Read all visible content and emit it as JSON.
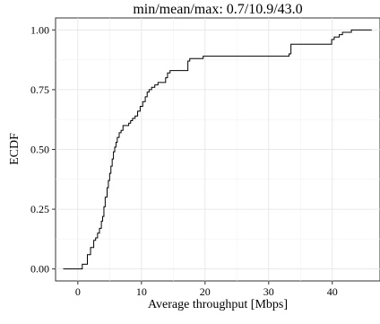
{
  "chart_data": {
    "type": "line",
    "title": "min/mean/max: 0.7/10.9/43.0",
    "xlabel": "Average throughput [Mbps]",
    "ylabel": "ECDF",
    "xlim": [
      -3.5,
      47.5
    ],
    "ylim": [
      -0.05,
      1.05
    ],
    "grid": true,
    "x_ticks": [
      0,
      10,
      20,
      30,
      40
    ],
    "y_ticks": [
      0.0,
      0.25,
      0.5,
      0.75,
      1.0
    ],
    "x_tick_labels": [
      "0",
      "10",
      "20",
      "30",
      "40"
    ],
    "y_tick_labels": [
      "0.00",
      "0.25",
      "0.50",
      "0.75",
      "1.00"
    ],
    "series": [
      {
        "step": "post",
        "x": [
          -2.3,
          0.7,
          1.5,
          2.0,
          2.5,
          2.8,
          3.1,
          3.4,
          3.7,
          3.9,
          4.1,
          4.3,
          4.6,
          4.8,
          5.0,
          5.2,
          5.4,
          5.6,
          5.8,
          6.0,
          6.2,
          6.5,
          6.8,
          7.1,
          8.0,
          8.3,
          8.6,
          9.0,
          9.4,
          9.8,
          10.2,
          10.6,
          10.9,
          11.2,
          11.6,
          12.1,
          12.6,
          13.8,
          14.1,
          14.5,
          17.3,
          17.6,
          19.7,
          33.2,
          33.5,
          39.9,
          40.3,
          41.1,
          41.6,
          43.0
        ],
        "y": [
          0.0,
          0.02,
          0.06,
          0.09,
          0.12,
          0.13,
          0.15,
          0.17,
          0.2,
          0.22,
          0.26,
          0.3,
          0.34,
          0.37,
          0.4,
          0.43,
          0.46,
          0.49,
          0.51,
          0.53,
          0.55,
          0.57,
          0.58,
          0.6,
          0.61,
          0.62,
          0.63,
          0.64,
          0.66,
          0.68,
          0.7,
          0.72,
          0.74,
          0.75,
          0.76,
          0.77,
          0.78,
          0.8,
          0.82,
          0.83,
          0.87,
          0.88,
          0.89,
          0.9,
          0.94,
          0.96,
          0.97,
          0.98,
          0.99,
          1.0
        ]
      }
    ]
  }
}
